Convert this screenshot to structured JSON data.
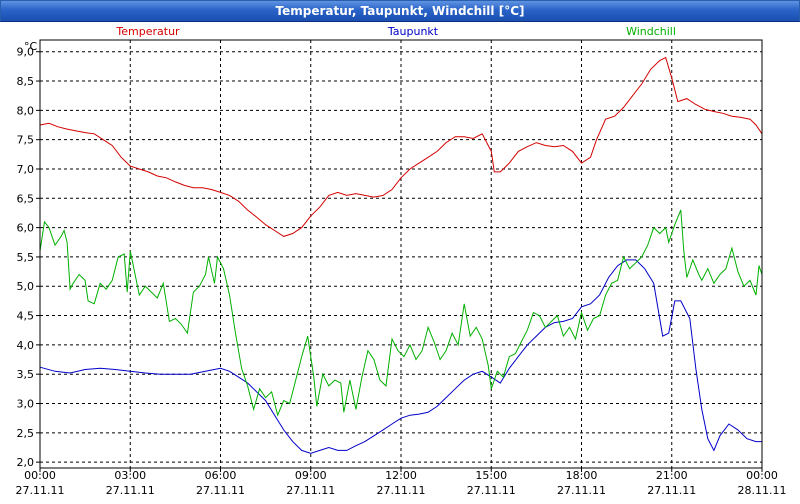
{
  "window": {
    "title": "Temperatur, Taupunkt, Windchill [°C]"
  },
  "colors": {
    "temperatur": "#d40000",
    "taupunkt": "#0000c8",
    "windchill": "#00b000",
    "grid": "#000000",
    "title_bar": "#2a63c8"
  },
  "chart_data": {
    "type": "line",
    "title": "Temperatur, Taupunkt, Windchill [°C]",
    "ylabel": "°C",
    "ylim": [
      1.9,
      9.2
    ],
    "xlim": [
      0,
      24
    ],
    "yticks": [
      {
        "v": 2.0,
        "label": "2,0"
      },
      {
        "v": 2.5,
        "label": "2,5"
      },
      {
        "v": 3.0,
        "label": "3,0"
      },
      {
        "v": 3.5,
        "label": "3,5"
      },
      {
        "v": 4.0,
        "label": "4,0"
      },
      {
        "v": 4.5,
        "label": "4,5"
      },
      {
        "v": 5.0,
        "label": "5,0"
      },
      {
        "v": 5.5,
        "label": "5,5"
      },
      {
        "v": 6.0,
        "label": "6,0"
      },
      {
        "v": 6.5,
        "label": "6,5"
      },
      {
        "v": 7.0,
        "label": "7,0"
      },
      {
        "v": 7.5,
        "label": "7,5"
      },
      {
        "v": 8.0,
        "label": "8,0"
      },
      {
        "v": 8.5,
        "label": "8,5"
      },
      {
        "v": 9.0,
        "label": "9,0"
      }
    ],
    "xticks": [
      {
        "v": 0,
        "time": "00:00",
        "date": "27.11.11"
      },
      {
        "v": 3,
        "time": "03:00",
        "date": "27.11.11"
      },
      {
        "v": 6,
        "time": "06:00",
        "date": "27.11.11"
      },
      {
        "v": 9,
        "time": "09:00",
        "date": "27.11.11"
      },
      {
        "v": 12,
        "time": "12:00",
        "date": "27.11.11"
      },
      {
        "v": 15,
        "time": "15:00",
        "date": "27.11.11"
      },
      {
        "v": 18,
        "time": "18:00",
        "date": "27.11.11"
      },
      {
        "v": 21,
        "time": "21:00",
        "date": "27.11.11"
      },
      {
        "v": 24,
        "time": "00:00",
        "date": "28.11.11"
      }
    ],
    "legend": [
      {
        "name": "Temperatur",
        "color": "#d40000",
        "position": "left"
      },
      {
        "name": "Taupunkt",
        "color": "#0000c8",
        "position": "center"
      },
      {
        "name": "Windchill",
        "color": "#00b000",
        "position": "right"
      }
    ],
    "series": [
      {
        "name": "Temperatur",
        "color": "#d40000",
        "points": [
          [
            0,
            7.75
          ],
          [
            0.3,
            7.78
          ],
          [
            0.6,
            7.72
          ],
          [
            0.9,
            7.68
          ],
          [
            1.2,
            7.65
          ],
          [
            1.5,
            7.62
          ],
          [
            1.8,
            7.6
          ],
          [
            2.1,
            7.5
          ],
          [
            2.4,
            7.4
          ],
          [
            2.7,
            7.2
          ],
          [
            3.0,
            7.05
          ],
          [
            3.3,
            7.0
          ],
          [
            3.6,
            6.95
          ],
          [
            3.9,
            6.88
          ],
          [
            4.2,
            6.85
          ],
          [
            4.5,
            6.78
          ],
          [
            4.8,
            6.72
          ],
          [
            5.1,
            6.68
          ],
          [
            5.4,
            6.68
          ],
          [
            5.7,
            6.65
          ],
          [
            6.0,
            6.6
          ],
          [
            6.3,
            6.55
          ],
          [
            6.6,
            6.45
          ],
          [
            6.9,
            6.3
          ],
          [
            7.2,
            6.18
          ],
          [
            7.5,
            6.05
          ],
          [
            7.8,
            5.95
          ],
          [
            8.1,
            5.85
          ],
          [
            8.4,
            5.9
          ],
          [
            8.7,
            6.0
          ],
          [
            9.0,
            6.2
          ],
          [
            9.3,
            6.35
          ],
          [
            9.6,
            6.55
          ],
          [
            9.9,
            6.6
          ],
          [
            10.2,
            6.55
          ],
          [
            10.5,
            6.58
          ],
          [
            10.8,
            6.55
          ],
          [
            11.1,
            6.52
          ],
          [
            11.4,
            6.55
          ],
          [
            11.7,
            6.65
          ],
          [
            12.0,
            6.85
          ],
          [
            12.3,
            7.0
          ],
          [
            12.6,
            7.1
          ],
          [
            12.9,
            7.2
          ],
          [
            13.2,
            7.3
          ],
          [
            13.5,
            7.45
          ],
          [
            13.8,
            7.55
          ],
          [
            14.1,
            7.55
          ],
          [
            14.4,
            7.52
          ],
          [
            14.7,
            7.6
          ],
          [
            15.0,
            7.3
          ],
          [
            15.1,
            6.95
          ],
          [
            15.3,
            6.95
          ],
          [
            15.6,
            7.1
          ],
          [
            15.9,
            7.3
          ],
          [
            16.2,
            7.38
          ],
          [
            16.5,
            7.45
          ],
          [
            16.8,
            7.4
          ],
          [
            17.1,
            7.38
          ],
          [
            17.4,
            7.4
          ],
          [
            17.7,
            7.3
          ],
          [
            18.0,
            7.1
          ],
          [
            18.3,
            7.2
          ],
          [
            18.5,
            7.5
          ],
          [
            18.8,
            7.85
          ],
          [
            19.1,
            7.9
          ],
          [
            19.4,
            8.05
          ],
          [
            19.7,
            8.25
          ],
          [
            20.0,
            8.45
          ],
          [
            20.3,
            8.7
          ],
          [
            20.6,
            8.85
          ],
          [
            20.8,
            8.9
          ],
          [
            21.0,
            8.55
          ],
          [
            21.2,
            8.15
          ],
          [
            21.5,
            8.2
          ],
          [
            21.8,
            8.1
          ],
          [
            22.1,
            8.02
          ],
          [
            22.4,
            7.98
          ],
          [
            22.7,
            7.95
          ],
          [
            23.0,
            7.9
          ],
          [
            23.3,
            7.88
          ],
          [
            23.6,
            7.85
          ],
          [
            23.8,
            7.75
          ],
          [
            24.0,
            7.6
          ]
        ]
      },
      {
        "name": "Taupunkt",
        "color": "#0000c8",
        "points": [
          [
            0,
            3.62
          ],
          [
            0.5,
            3.55
          ],
          [
            1.0,
            3.52
          ],
          [
            1.5,
            3.58
          ],
          [
            2.0,
            3.6
          ],
          [
            2.5,
            3.58
          ],
          [
            3.0,
            3.55
          ],
          [
            3.5,
            3.52
          ],
          [
            4.0,
            3.5
          ],
          [
            4.5,
            3.5
          ],
          [
            5.0,
            3.5
          ],
          [
            5.5,
            3.55
          ],
          [
            6.0,
            3.6
          ],
          [
            6.3,
            3.55
          ],
          [
            6.6,
            3.45
          ],
          [
            6.9,
            3.35
          ],
          [
            7.2,
            3.2
          ],
          [
            7.5,
            3.05
          ],
          [
            7.8,
            2.8
          ],
          [
            8.1,
            2.55
          ],
          [
            8.4,
            2.35
          ],
          [
            8.7,
            2.2
          ],
          [
            9.0,
            2.15
          ],
          [
            9.3,
            2.2
          ],
          [
            9.6,
            2.25
          ],
          [
            9.9,
            2.2
          ],
          [
            10.2,
            2.2
          ],
          [
            10.5,
            2.28
          ],
          [
            10.8,
            2.35
          ],
          [
            11.1,
            2.45
          ],
          [
            11.4,
            2.55
          ],
          [
            11.7,
            2.65
          ],
          [
            12.0,
            2.75
          ],
          [
            12.3,
            2.8
          ],
          [
            12.6,
            2.82
          ],
          [
            12.9,
            2.85
          ],
          [
            13.2,
            2.95
          ],
          [
            13.5,
            3.1
          ],
          [
            13.8,
            3.25
          ],
          [
            14.1,
            3.4
          ],
          [
            14.4,
            3.5
          ],
          [
            14.7,
            3.55
          ],
          [
            15.0,
            3.45
          ],
          [
            15.3,
            3.35
          ],
          [
            15.6,
            3.6
          ],
          [
            15.9,
            3.8
          ],
          [
            16.2,
            4.0
          ],
          [
            16.5,
            4.15
          ],
          [
            16.8,
            4.3
          ],
          [
            17.1,
            4.38
          ],
          [
            17.4,
            4.4
          ],
          [
            17.7,
            4.45
          ],
          [
            18.0,
            4.65
          ],
          [
            18.3,
            4.7
          ],
          [
            18.6,
            4.85
          ],
          [
            18.9,
            5.15
          ],
          [
            19.2,
            5.35
          ],
          [
            19.5,
            5.45
          ],
          [
            19.8,
            5.45
          ],
          [
            20.1,
            5.3
          ],
          [
            20.4,
            5.05
          ],
          [
            20.7,
            4.15
          ],
          [
            20.9,
            4.2
          ],
          [
            21.1,
            4.75
          ],
          [
            21.3,
            4.75
          ],
          [
            21.6,
            4.45
          ],
          [
            21.8,
            3.6
          ],
          [
            22.0,
            2.9
          ],
          [
            22.2,
            2.4
          ],
          [
            22.4,
            2.2
          ],
          [
            22.6,
            2.45
          ],
          [
            22.9,
            2.65
          ],
          [
            23.2,
            2.55
          ],
          [
            23.5,
            2.4
          ],
          [
            23.8,
            2.35
          ],
          [
            24.0,
            2.35
          ]
        ]
      },
      {
        "name": "Windchill",
        "color": "#00b000",
        "points": [
          [
            0,
            5.6
          ],
          [
            0.15,
            6.1
          ],
          [
            0.3,
            6.0
          ],
          [
            0.5,
            5.7
          ],
          [
            0.7,
            5.85
          ],
          [
            0.8,
            5.95
          ],
          [
            0.9,
            5.75
          ],
          [
            1.0,
            4.95
          ],
          [
            1.1,
            5.05
          ],
          [
            1.3,
            5.2
          ],
          [
            1.5,
            5.1
          ],
          [
            1.6,
            4.75
          ],
          [
            1.8,
            4.7
          ],
          [
            2.0,
            5.05
          ],
          [
            2.2,
            4.95
          ],
          [
            2.4,
            5.1
          ],
          [
            2.6,
            5.5
          ],
          [
            2.8,
            5.55
          ],
          [
            2.9,
            4.9
          ],
          [
            3.0,
            5.6
          ],
          [
            3.1,
            5.35
          ],
          [
            3.3,
            4.85
          ],
          [
            3.5,
            5.0
          ],
          [
            3.7,
            4.9
          ],
          [
            3.9,
            4.8
          ],
          [
            4.1,
            5.05
          ],
          [
            4.3,
            4.4
          ],
          [
            4.5,
            4.45
          ],
          [
            4.7,
            4.35
          ],
          [
            4.9,
            4.2
          ],
          [
            5.1,
            4.9
          ],
          [
            5.3,
            5.0
          ],
          [
            5.5,
            5.2
          ],
          [
            5.6,
            5.5
          ],
          [
            5.8,
            5.05
          ],
          [
            5.9,
            5.5
          ],
          [
            6.1,
            5.3
          ],
          [
            6.3,
            4.85
          ],
          [
            6.5,
            4.2
          ],
          [
            6.7,
            3.6
          ],
          [
            6.9,
            3.3
          ],
          [
            7.1,
            2.9
          ],
          [
            7.3,
            3.25
          ],
          [
            7.5,
            3.1
          ],
          [
            7.7,
            3.2
          ],
          [
            7.9,
            2.8
          ],
          [
            8.1,
            3.05
          ],
          [
            8.3,
            3.0
          ],
          [
            8.5,
            3.4
          ],
          [
            8.7,
            3.8
          ],
          [
            8.9,
            4.15
          ],
          [
            9.1,
            3.45
          ],
          [
            9.2,
            2.95
          ],
          [
            9.4,
            3.5
          ],
          [
            9.6,
            3.3
          ],
          [
            9.8,
            3.4
          ],
          [
            10.0,
            3.35
          ],
          [
            10.1,
            2.85
          ],
          [
            10.3,
            3.4
          ],
          [
            10.5,
            2.9
          ],
          [
            10.7,
            3.45
          ],
          [
            10.9,
            3.9
          ],
          [
            11.1,
            3.75
          ],
          [
            11.3,
            3.4
          ],
          [
            11.5,
            3.3
          ],
          [
            11.7,
            4.1
          ],
          [
            11.9,
            3.9
          ],
          [
            12.1,
            3.8
          ],
          [
            12.3,
            4.0
          ],
          [
            12.5,
            3.75
          ],
          [
            12.7,
            3.9
          ],
          [
            12.9,
            4.3
          ],
          [
            13.1,
            4.05
          ],
          [
            13.3,
            3.75
          ],
          [
            13.5,
            3.9
          ],
          [
            13.7,
            4.2
          ],
          [
            13.9,
            4.0
          ],
          [
            14.1,
            4.7
          ],
          [
            14.3,
            4.15
          ],
          [
            14.5,
            4.3
          ],
          [
            14.7,
            4.1
          ],
          [
            14.9,
            3.65
          ],
          [
            15.0,
            3.25
          ],
          [
            15.2,
            3.55
          ],
          [
            15.4,
            3.45
          ],
          [
            15.6,
            3.8
          ],
          [
            15.8,
            3.85
          ],
          [
            16.0,
            4.05
          ],
          [
            16.2,
            4.25
          ],
          [
            16.4,
            4.55
          ],
          [
            16.6,
            4.5
          ],
          [
            16.8,
            4.3
          ],
          [
            17.0,
            4.4
          ],
          [
            17.2,
            4.5
          ],
          [
            17.4,
            4.15
          ],
          [
            17.6,
            4.3
          ],
          [
            17.8,
            4.1
          ],
          [
            18.0,
            4.55
          ],
          [
            18.2,
            4.25
          ],
          [
            18.4,
            4.45
          ],
          [
            18.6,
            4.5
          ],
          [
            18.8,
            4.85
          ],
          [
            19.0,
            5.05
          ],
          [
            19.2,
            5.1
          ],
          [
            19.4,
            5.5
          ],
          [
            19.6,
            5.3
          ],
          [
            19.8,
            5.4
          ],
          [
            20.0,
            5.5
          ],
          [
            20.2,
            5.7
          ],
          [
            20.4,
            6.0
          ],
          [
            20.6,
            5.9
          ],
          [
            20.8,
            6.0
          ],
          [
            20.9,
            5.75
          ],
          [
            21.1,
            6.05
          ],
          [
            21.3,
            6.3
          ],
          [
            21.4,
            5.6
          ],
          [
            21.5,
            5.15
          ],
          [
            21.7,
            5.45
          ],
          [
            21.9,
            5.2
          ],
          [
            22.0,
            5.1
          ],
          [
            22.2,
            5.3
          ],
          [
            22.4,
            5.05
          ],
          [
            22.6,
            5.2
          ],
          [
            22.8,
            5.3
          ],
          [
            23.0,
            5.65
          ],
          [
            23.2,
            5.25
          ],
          [
            23.4,
            5.0
          ],
          [
            23.6,
            5.1
          ],
          [
            23.8,
            4.85
          ],
          [
            23.9,
            5.35
          ],
          [
            24.0,
            5.2
          ]
        ]
      }
    ]
  }
}
